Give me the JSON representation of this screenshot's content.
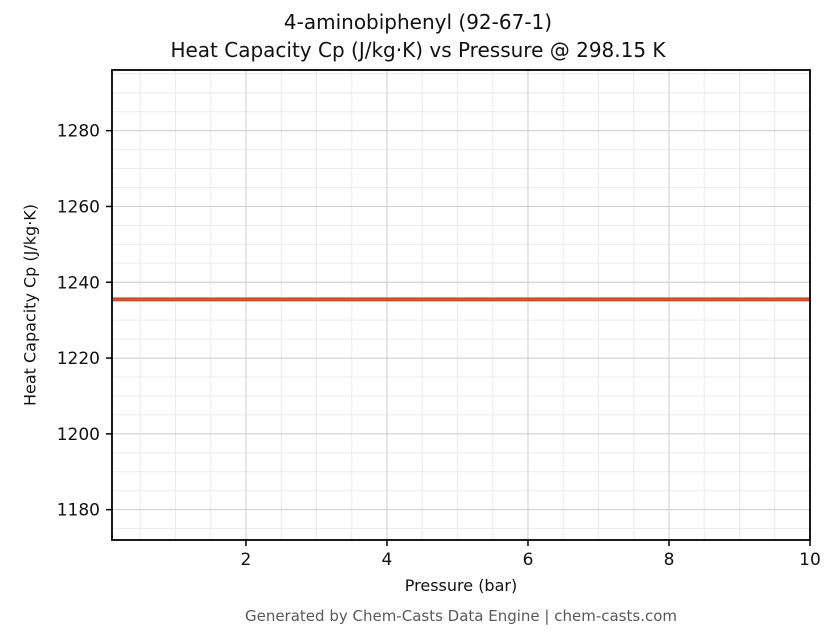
{
  "chart_data": {
    "type": "line",
    "title_line1": "4-aminobiphenyl (92-67-1)",
    "title_line2": "Heat Capacity Cp (J/kg·K) vs Pressure @ 298.15 K",
    "xlabel": "Pressure (bar)",
    "ylabel": "Heat Capacity Cp (J/kg·K)",
    "footer": "Generated by Chem-Casts Data Engine | chem-casts.com",
    "series": [
      {
        "name": "Cp vs Pressure",
        "color": "#d1512d",
        "x": [
          0.1,
          10
        ],
        "y": [
          1235.5,
          1235.5
        ]
      }
    ],
    "constant_value": 1235.5,
    "xlim": [
      0.1,
      10
    ],
    "ylim": [
      1172,
      1296
    ],
    "xticks": [
      2,
      4,
      6,
      8,
      10
    ],
    "yticks": [
      1180,
      1200,
      1220,
      1240,
      1260,
      1280
    ],
    "x_minor_step": 0.5,
    "y_minor_step": 5,
    "grid": true,
    "legend": "none",
    "line_width": 4,
    "colors": {
      "axis_border": "#000000",
      "major_grid": "#cfcfcf",
      "minor_grid": "#ebebeb",
      "tick_label": "#111111"
    }
  }
}
